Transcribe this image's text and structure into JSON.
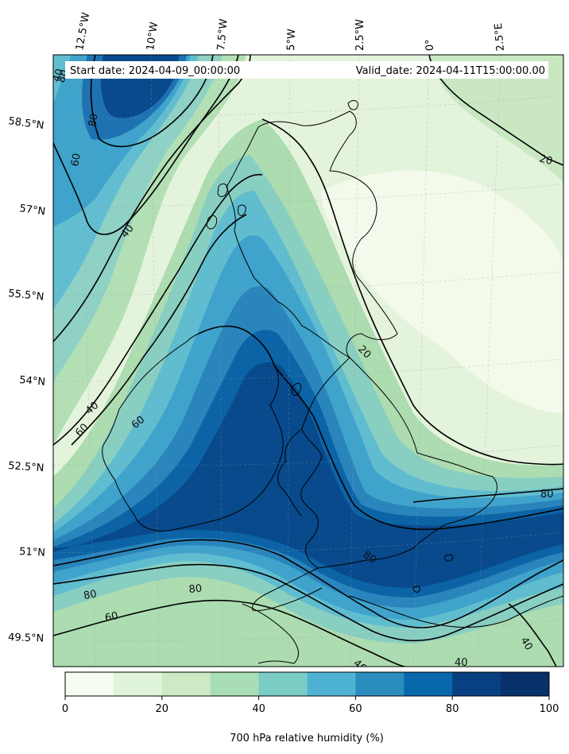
{
  "header": {
    "start_date": "Start date: 2024-04-09_00:00:00",
    "valid_date": "Valid_date: 2024-04-11T15:00:00.00"
  },
  "axes": {
    "lon_labels": [
      "12.5°W",
      "10°W",
      "7.5°W",
      "5°W",
      "2.5°W",
      "0°",
      "2.5°E"
    ],
    "lat_labels": [
      "58.5°N",
      "57°N",
      "55.5°N",
      "54°N",
      "52.5°N",
      "51°N",
      "49.5°N"
    ]
  },
  "contours": {
    "labels": [
      "80",
      "80",
      "60",
      "60",
      "40",
      "40",
      "20",
      "20",
      "40",
      "60",
      "80",
      "80",
      "80",
      "80",
      "60",
      "40",
      "40",
      "40",
      "40"
    ]
  },
  "colorbar": {
    "title": "700 hPa relative humidity (%)",
    "ticks": [
      "0",
      "20",
      "40",
      "60",
      "80",
      "100"
    ],
    "colors": [
      "#f7fcf0",
      "#e0f3db",
      "#ccebc5",
      "#a8ddb5",
      "#7bccc4",
      "#4eb3d3",
      "#2b8cbe",
      "#0868ac",
      "#084081",
      "#08306b"
    ]
  },
  "colors": {
    "level0": "#f0f9e8",
    "level1": "#dcf0d8",
    "level2": "#c8e8c4",
    "level3": "#aedeb2",
    "level4": "#88cfc2",
    "level5": "#60bccf",
    "level6": "#3fa3cc",
    "level7": "#2a85bc",
    "level8": "#0c64a6",
    "level9": "#084a8c"
  }
}
